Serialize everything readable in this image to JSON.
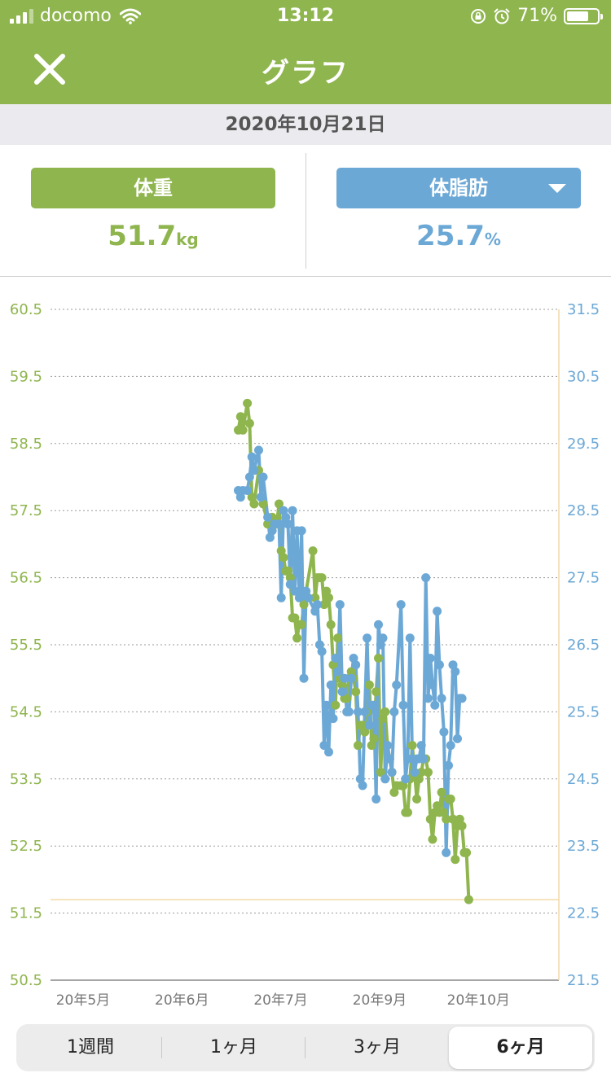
{
  "status": {
    "carrier": "docomo",
    "time": "13:12",
    "battery_percent": "71%",
    "battery_level": 0.71
  },
  "nav": {
    "title": "グラフ",
    "close_icon": "close-icon"
  },
  "date": "2020年10月21日",
  "metrics": {
    "left": {
      "label": "体重",
      "value": "51.7",
      "unit": "kg",
      "color": "#8fb54e"
    },
    "right": {
      "label": "体脂肪",
      "value": "25.7",
      "unit": "%",
      "color": "#6ca8d6"
    }
  },
  "periods": [
    {
      "label": "1週間",
      "selected": false
    },
    {
      "label": "1ヶ月",
      "selected": false
    },
    {
      "label": "3ヶ月",
      "selected": false
    },
    {
      "label": "6ヶ月",
      "selected": true
    }
  ],
  "chart_data": {
    "type": "line",
    "grid": true,
    "left_axis": {
      "min": 50.5,
      "max": 60.5,
      "ticks": [
        "60.5",
        "59.5",
        "58.5",
        "57.5",
        "56.5",
        "55.5",
        "54.5",
        "53.5",
        "52.5",
        "51.5",
        "50.5"
      ],
      "color": "#8fb54e"
    },
    "right_axis": {
      "min": 21.5,
      "max": 31.5,
      "ticks": [
        "31.5",
        "30.5",
        "29.5",
        "28.5",
        "27.5",
        "26.5",
        "25.5",
        "24.5",
        "23.5",
        "22.5",
        "21.5"
      ],
      "color": "#6ca8d6"
    },
    "x_labels": [
      "20年5月",
      "20年6月",
      "20年7月",
      "20年9月",
      "20年10月"
    ],
    "x_domain": [
      0,
      180
    ],
    "x_label_positions": [
      2,
      37,
      72,
      107,
      142
    ],
    "reference_line": {
      "value": 51.7,
      "axis": "left",
      "color": "#f2d9a8"
    },
    "series": [
      {
        "axis": "left",
        "color": "#8fb54e",
        "points": [
          [
            66.5,
            58.7
          ],
          [
            67.3,
            58.9
          ],
          [
            68.1,
            58.7
          ],
          [
            69.7,
            59.1
          ],
          [
            70.5,
            58.8
          ],
          [
            71.3,
            57.7
          ],
          [
            72.1,
            57.6
          ],
          [
            73.7,
            58.1
          ],
          [
            75.3,
            57.6
          ],
          [
            76.9,
            57.3
          ],
          [
            78.5,
            57.4
          ],
          [
            80.1,
            57.3
          ],
          [
            80.9,
            57.6
          ],
          [
            81.7,
            56.9
          ],
          [
            82.5,
            56.8
          ],
          [
            83.3,
            56.6
          ],
          [
            84.1,
            56.6
          ],
          [
            84.9,
            56.5
          ],
          [
            85.7,
            55.9
          ],
          [
            86.5,
            55.9
          ],
          [
            87.3,
            55.6
          ],
          [
            88.1,
            55.8
          ],
          [
            88.9,
            55.8
          ],
          [
            89.7,
            56.1
          ],
          [
            92.9,
            56.9
          ],
          [
            93.7,
            56.2
          ],
          [
            94.5,
            56.5
          ],
          [
            95.3,
            56.5
          ],
          [
            96.1,
            56.5
          ],
          [
            96.9,
            56.1
          ],
          [
            97.7,
            56.3
          ],
          [
            98.5,
            56.2
          ],
          [
            99.3,
            55.8
          ],
          [
            100.1,
            55.2
          ],
          [
            100.9,
            54.6
          ],
          [
            101.7,
            55.6
          ],
          [
            102.5,
            55.0
          ],
          [
            103.3,
            54.9
          ],
          [
            104.1,
            54.7
          ],
          [
            104.9,
            54.7
          ],
          [
            105.7,
            55.0
          ],
          [
            106.5,
            55.1
          ],
          [
            107.3,
            55.0
          ],
          [
            108.1,
            54.8
          ],
          [
            108.9,
            54.0
          ],
          [
            109.7,
            54.3
          ],
          [
            110.5,
            54.3
          ],
          [
            111.3,
            54.2
          ],
          [
            112.1,
            54.5
          ],
          [
            112.9,
            54.9
          ],
          [
            113.7,
            54.0
          ],
          [
            114.5,
            54.1
          ],
          [
            115.3,
            54.8
          ],
          [
            116.1,
            55.3
          ],
          [
            116.9,
            53.6
          ],
          [
            117.7,
            54.4
          ],
          [
            118.5,
            54.5
          ],
          [
            119.3,
            54.0
          ],
          [
            120.1,
            53.8
          ],
          [
            120.9,
            53.6
          ],
          [
            121.7,
            53.3
          ],
          [
            122.5,
            53.4
          ],
          [
            124.1,
            53.4
          ],
          [
            124.9,
            53.4
          ],
          [
            125.7,
            53.0
          ],
          [
            126.5,
            53.0
          ],
          [
            127.3,
            53.5
          ],
          [
            128.1,
            54.0
          ],
          [
            128.9,
            53.6
          ],
          [
            129.7,
            53.2
          ],
          [
            130.5,
            53.5
          ],
          [
            131.3,
            53.6
          ],
          [
            132.1,
            53.8
          ],
          [
            132.9,
            53.8
          ],
          [
            133.7,
            53.6
          ],
          [
            134.5,
            52.9
          ],
          [
            135.3,
            52.6
          ],
          [
            136.1,
            53.0
          ],
          [
            136.9,
            53.1
          ],
          [
            137.7,
            53.0
          ],
          [
            138.5,
            53.3
          ],
          [
            139.3,
            53.0
          ],
          [
            140.1,
            52.9
          ],
          [
            140.9,
            53.2
          ],
          [
            141.7,
            53.2
          ],
          [
            142.5,
            52.9
          ],
          [
            143.3,
            52.3
          ],
          [
            144.1,
            52.8
          ],
          [
            144.9,
            52.9
          ],
          [
            145.7,
            52.8
          ],
          [
            146.5,
            52.4
          ],
          [
            147.3,
            52.4
          ],
          [
            148.1,
            51.7
          ]
        ]
      },
      {
        "axis": "right",
        "color": "#6ca8d6",
        "points": [
          [
            66.5,
            28.8
          ],
          [
            67.3,
            28.7
          ],
          [
            68.1,
            28.8
          ],
          [
            69.7,
            28.8
          ],
          [
            70.5,
            29.0
          ],
          [
            71.3,
            29.3
          ],
          [
            72.1,
            29.1
          ],
          [
            73.7,
            29.4
          ],
          [
            74.5,
            28.7
          ],
          [
            75.3,
            29.0
          ],
          [
            76.9,
            28.4
          ],
          [
            77.7,
            28.1
          ],
          [
            78.5,
            28.2
          ],
          [
            79.3,
            28.3
          ],
          [
            80.9,
            28.3
          ],
          [
            81.7,
            27.2
          ],
          [
            82.5,
            28.5
          ],
          [
            83.3,
            28.4
          ],
          [
            84.1,
            28.3
          ],
          [
            84.9,
            27.4
          ],
          [
            85.7,
            28.5
          ],
          [
            86.5,
            27.3
          ],
          [
            87.3,
            28.2
          ],
          [
            88.1,
            27.2
          ],
          [
            88.9,
            28.2
          ],
          [
            89.7,
            26.0
          ],
          [
            90.5,
            27.3
          ],
          [
            91.3,
            27.2
          ],
          [
            93.7,
            27.0
          ],
          [
            94.5,
            27.1
          ],
          [
            95.3,
            26.5
          ],
          [
            96.1,
            26.4
          ],
          [
            96.9,
            25.0
          ],
          [
            97.7,
            25.6
          ],
          [
            98.5,
            24.9
          ],
          [
            99.3,
            25.9
          ],
          [
            100.1,
            25.4
          ],
          [
            100.9,
            26.3
          ],
          [
            101.7,
            26.1
          ],
          [
            102.5,
            27.1
          ],
          [
            103.3,
            25.8
          ],
          [
            104.1,
            26.0
          ],
          [
            104.9,
            25.5
          ],
          [
            105.7,
            25.5
          ],
          [
            106.5,
            26.0
          ],
          [
            107.3,
            26.3
          ],
          [
            108.1,
            26.2
          ],
          [
            108.9,
            25.5
          ],
          [
            109.7,
            24.5
          ],
          [
            110.5,
            24.4
          ],
          [
            111.3,
            25.5
          ],
          [
            112.1,
            26.6
          ],
          [
            112.9,
            25.3
          ],
          [
            113.7,
            25.6
          ],
          [
            114.5,
            25.6
          ],
          [
            115.3,
            24.2
          ],
          [
            116.1,
            26.8
          ],
          [
            116.9,
            26.5
          ],
          [
            117.7,
            26.6
          ],
          [
            118.5,
            24.5
          ],
          [
            119.3,
            25.0
          ],
          [
            120.1,
            24.8
          ],
          [
            120.9,
            24.6
          ],
          [
            121.7,
            25.5
          ],
          [
            122.5,
            25.9
          ],
          [
            124.1,
            27.1
          ],
          [
            124.9,
            25.6
          ],
          [
            125.7,
            24.5
          ],
          [
            126.5,
            24.8
          ],
          [
            127.3,
            26.6
          ],
          [
            128.1,
            24.8
          ],
          [
            128.9,
            24.6
          ],
          [
            129.7,
            24.8
          ],
          [
            130.5,
            24.8
          ],
          [
            131.3,
            25.0
          ],
          [
            132.1,
            24.8
          ],
          [
            132.9,
            27.5
          ],
          [
            133.7,
            25.7
          ],
          [
            134.5,
            26.3
          ],
          [
            135.3,
            25.9
          ],
          [
            136.1,
            25.6
          ],
          [
            136.9,
            27.0
          ],
          [
            137.7,
            26.2
          ],
          [
            138.5,
            25.7
          ],
          [
            139.3,
            25.2
          ],
          [
            140.1,
            23.4
          ],
          [
            140.9,
            24.7
          ],
          [
            141.7,
            25.0
          ],
          [
            142.5,
            26.2
          ],
          [
            143.3,
            26.1
          ],
          [
            144.1,
            25.1
          ],
          [
            144.9,
            25.7
          ],
          [
            145.7,
            25.7
          ]
        ]
      }
    ]
  }
}
